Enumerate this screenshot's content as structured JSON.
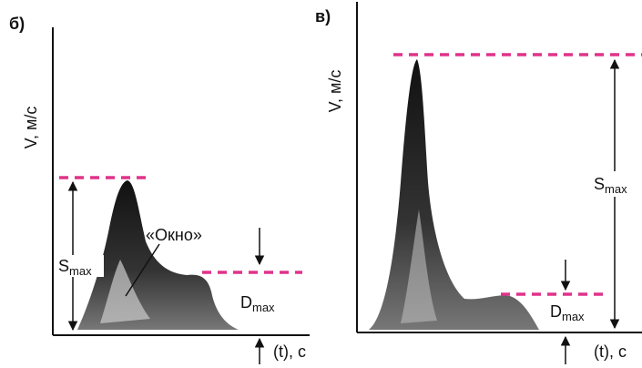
{
  "panels": [
    {
      "label": "б)",
      "y_axis_label": "V, м/с",
      "x_axis_label": "(t), с",
      "s_max": {
        "main": "S",
        "sub": "max"
      },
      "d_max": {
        "main": "D",
        "sub": "max"
      },
      "window_label": "«Окно»"
    },
    {
      "label": "в)",
      "y_axis_label": "V, м/с",
      "x_axis_label": "(t), с",
      "s_max": {
        "main": "S",
        "sub": "max"
      },
      "d_max": {
        "main": "D",
        "sub": "max"
      }
    }
  ]
}
